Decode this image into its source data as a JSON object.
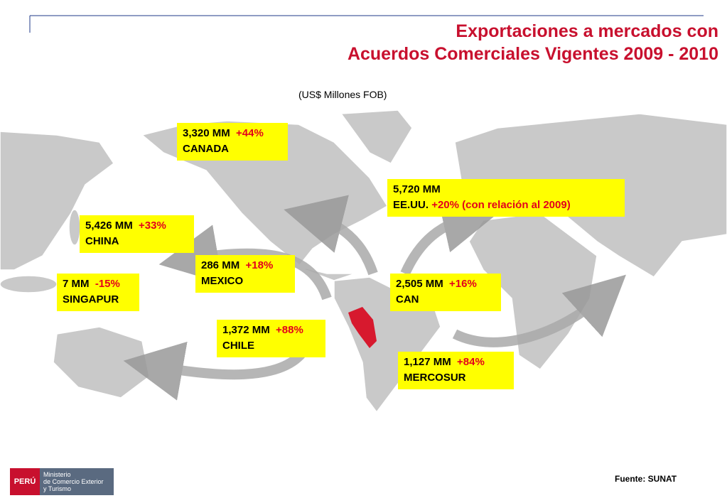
{
  "header": {
    "title_lines": [
      "Exportaciones a mercados con",
      "Acuerdos Comerciales Vigentes 2009 - 2010"
    ],
    "subtitle": "(US$ Millones FOB)"
  },
  "markets": [
    {
      "value": "3,320 MM",
      "change": "+44%",
      "name": "CANADA"
    },
    {
      "value": "5,720 MM",
      "change": "+20% (con relación al 2009)",
      "name": "EE.UU."
    },
    {
      "value": "5,426 MM",
      "change": "+33%",
      "name": "CHINA"
    },
    {
      "value": "286 MM",
      "change": "+18%",
      "name": "MEXICO"
    },
    {
      "value": "7 MM",
      "change": "-15%",
      "name": "SINGAPUR"
    },
    {
      "value": "2,505 MM",
      "change": "+16%",
      "name": "CAN"
    },
    {
      "value": "1,372 MM",
      "change": "+88%",
      "name": "CHILE"
    },
    {
      "value": "1,127 MM",
      "change": "+84%",
      "name": "MERCOSUR"
    }
  ],
  "footer": {
    "source": "Fuente: SUNAT",
    "logo_country": "PERÚ",
    "logo_lines": [
      "Ministerio",
      "de Comercio Exterior",
      "y Turismo"
    ]
  }
}
